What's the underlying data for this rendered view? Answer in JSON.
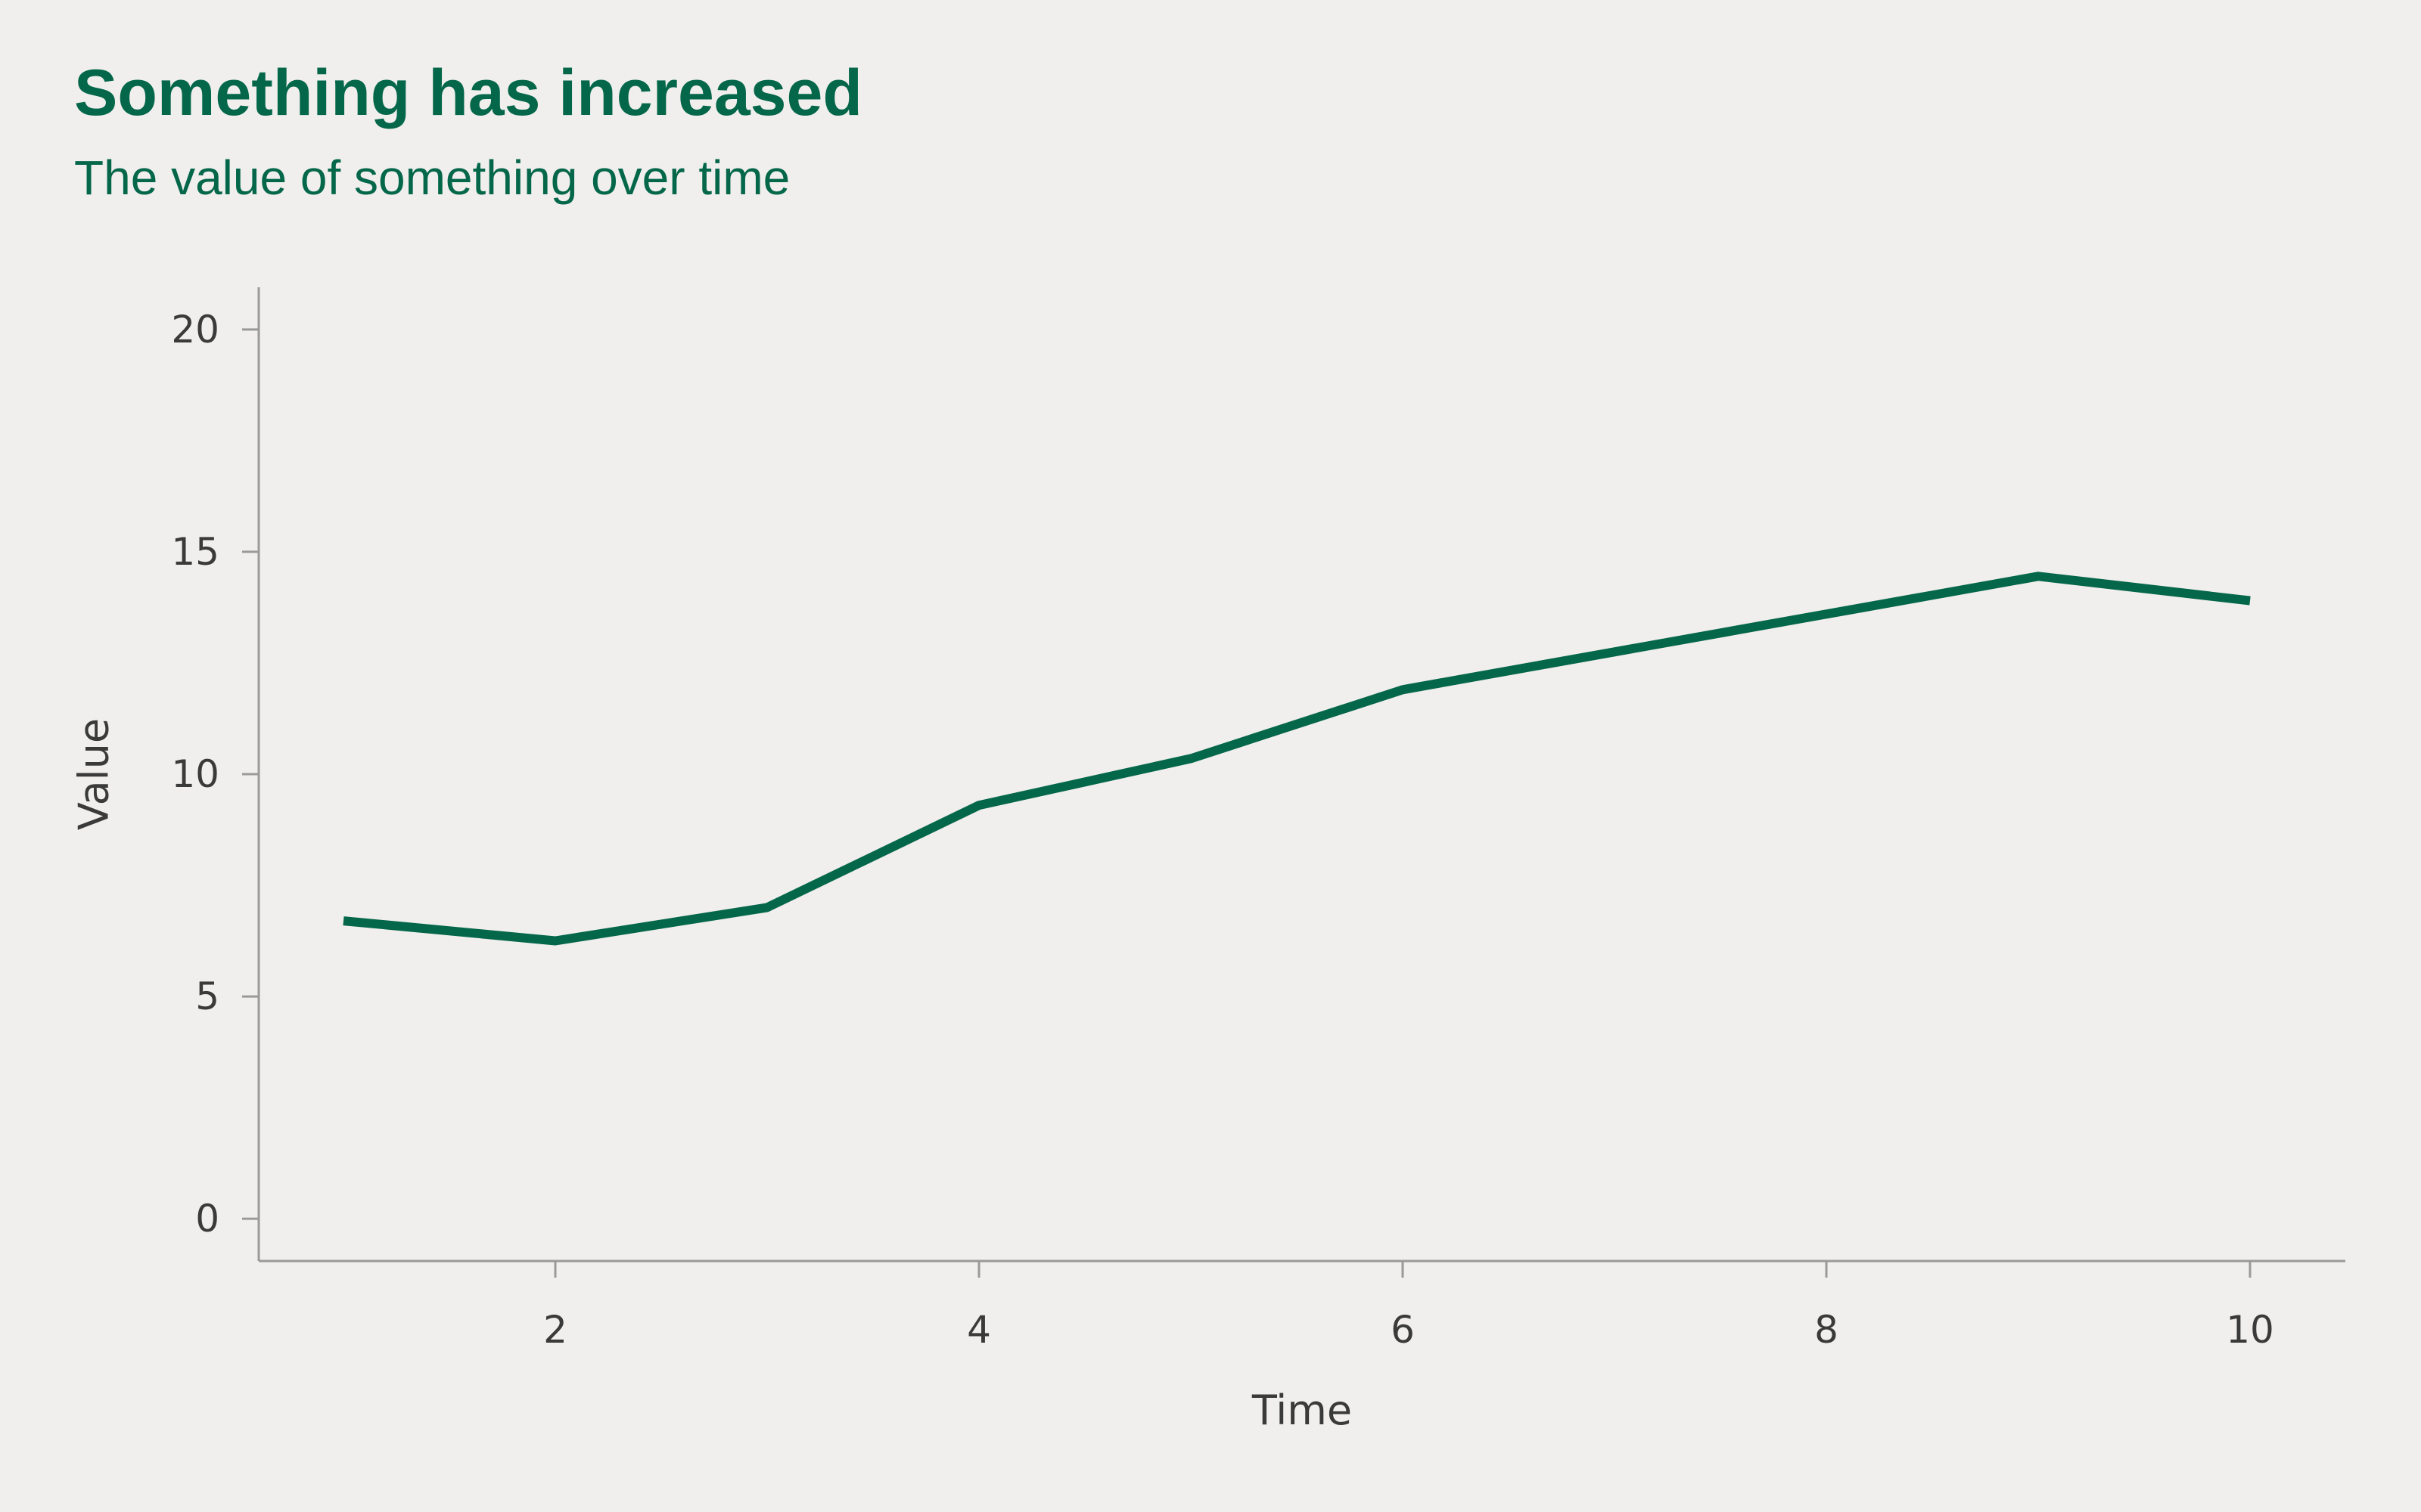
{
  "colors": {
    "background": "#f0efed",
    "accent": "#05674a",
    "axis": "#9a9a9a",
    "text": "#3a3a3a"
  },
  "chart_data": {
    "type": "line",
    "title": "Something has increased",
    "subtitle": "The value of something over time",
    "xlabel": "Time",
    "ylabel": "Value",
    "xlim": [
      0.6,
      10.45
    ],
    "ylim": [
      -0.95,
      20.95
    ],
    "xticks": [
      2,
      4,
      6,
      8,
      10
    ],
    "yticks": [
      0,
      5,
      10,
      15,
      20
    ],
    "grid": false,
    "series": [
      {
        "x": [
          1,
          2,
          3,
          4,
          5,
          6,
          7,
          8,
          9,
          10
        ],
        "values": [
          6.7,
          6.25,
          7.0,
          9.3,
          10.35,
          11.9,
          12.75,
          13.6,
          14.45,
          13.9
        ]
      }
    ]
  }
}
